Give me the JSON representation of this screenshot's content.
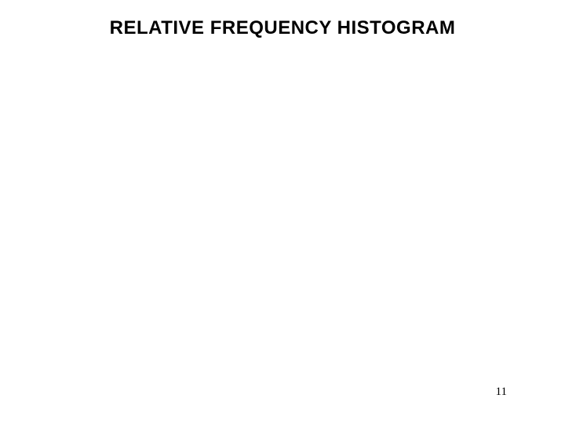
{
  "slide": {
    "title": "RELATIVE FREQUENCY HISTOGRAM",
    "title_fontsize": 24,
    "title_fontweight": "bold",
    "title_color": "#000000",
    "background_color": "#ffffff",
    "page_number": "11",
    "page_number_fontsize": 15,
    "page_number_color": "#000000"
  }
}
